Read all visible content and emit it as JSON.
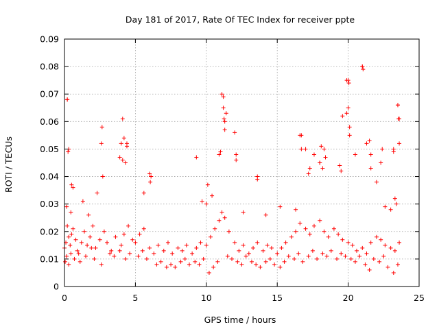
{
  "chart_data": {
    "type": "scatter",
    "title": "Day 181 of 2017, Rate Of TEC Index for receiver ppte",
    "xlabel": "GPS time / hours",
    "ylabel": "ROTI / TECUs",
    "xlim": [
      0,
      25
    ],
    "ylim": [
      0,
      0.09
    ],
    "xticks": [
      0,
      5,
      10,
      15,
      20,
      25
    ],
    "xtick_labels": [
      "0",
      "5",
      "10",
      "15",
      "20",
      "25"
    ],
    "yticks": [
      0,
      0.01,
      0.02,
      0.03,
      0.04,
      0.05,
      0.06,
      0.07,
      0.08,
      0.09
    ],
    "ytick_labels": [
      "0",
      "0.01",
      "0.02",
      "0.03",
      "0.04",
      "0.05",
      "0.06",
      "0.07",
      "0.08",
      "0.09"
    ],
    "grid": true,
    "marker": "+",
    "color": "#ff0000",
    "series": [
      {
        "x": [
          0.0,
          0.1,
          0.2,
          0.3,
          0.4,
          0.5,
          0.6,
          0.8,
          1.0,
          1.2,
          1.4,
          1.6,
          1.8,
          2.0,
          2.2,
          2.5,
          2.8,
          3.0,
          3.3,
          3.6,
          4.0,
          4.2,
          4.5,
          4.8,
          5.0,
          5.3,
          5.6,
          6.0,
          6.3,
          6.6,
          7.0,
          7.3,
          7.6,
          8.0,
          8.3,
          8.6,
          9.0,
          9.3,
          9.6,
          10.0,
          10.3,
          10.6,
          10.9,
          11.1,
          11.3,
          11.6,
          12.0,
          12.3,
          12.6,
          13.0,
          13.3,
          13.6,
          14.0,
          14.3,
          14.6,
          15.0,
          15.3,
          15.6,
          16.0,
          16.3,
          16.6,
          17.0,
          17.3,
          17.6,
          18.0,
          18.3,
          18.6,
          19.0,
          19.3,
          19.6,
          20.0,
          20.3,
          20.6,
          21.0,
          21.3,
          21.6,
          22.0,
          22.3,
          22.6,
          23.0,
          23.3,
          23.6,
          0.2,
          0.5,
          1.3,
          2.3,
          2.7,
          4.1,
          4.4,
          6.1,
          9.3,
          11.1,
          11.2,
          11.3,
          12.1,
          13.6,
          16.7,
          17.0,
          18.0,
          18.3,
          19.6,
          19.9,
          20.0,
          20.1,
          20.5,
          21.0,
          21.3,
          21.6,
          22.0,
          23.2,
          23.5,
          23.6,
          0.05,
          0.15,
          0.3,
          0.45,
          0.7,
          0.9,
          1.1,
          1.5,
          1.9,
          2.1,
          2.6,
          3.2,
          3.5,
          3.9,
          4.3,
          4.6,
          5.2,
          5.5,
          5.8,
          6.5,
          6.8,
          7.2,
          7.5,
          7.8,
          8.2,
          8.5,
          8.8,
          9.2,
          9.5,
          9.8,
          10.2,
          10.5,
          10.8,
          11.5,
          11.8,
          12.2,
          12.5,
          12.8,
          13.2,
          13.5,
          13.8,
          14.2,
          14.5,
          14.8,
          15.2,
          15.5,
          15.8,
          16.2,
          16.5,
          16.8,
          17.2,
          17.5,
          17.8,
          18.2,
          18.5,
          18.8,
          19.2,
          19.5,
          19.8,
          20.2,
          20.5,
          20.8,
          21.2,
          21.5,
          21.8,
          22.2,
          22.5,
          22.8,
          23.2,
          23.5,
          0.2,
          0.25,
          0.3,
          0.6,
          2.6,
          2.65,
          3.9,
          4.0,
          4.1,
          4.2,
          4.3,
          4.4,
          6.0,
          6.05,
          10.1,
          10.4,
          10.9,
          11.0,
          11.2,
          11.25,
          11.3,
          11.4,
          12.0,
          12.1,
          13.6,
          16.3,
          16.6,
          16.7,
          17.2,
          17.3,
          17.6,
          18.0,
          18.1,
          18.2,
          18.4,
          19.4,
          19.5,
          19.9,
          20.0,
          20.05,
          20.1,
          21.0,
          21.05,
          21.5,
          21.6,
          22.3,
          22.4,
          23.2,
          23.3,
          23.5,
          23.55,
          23.6,
          0.15,
          0.45,
          1.7,
          5.6,
          9.7,
          10.0,
          12.6,
          14.2,
          15.2,
          22.6,
          23.0,
          23.4
        ],
        "y": [
          0.014,
          0.016,
          0.022,
          0.018,
          0.015,
          0.019,
          0.021,
          0.017,
          0.012,
          0.016,
          0.02,
          0.015,
          0.018,
          0.022,
          0.014,
          0.017,
          0.02,
          0.016,
          0.013,
          0.018,
          0.015,
          0.019,
          0.022,
          0.017,
          0.016,
          0.019,
          0.021,
          0.014,
          0.012,
          0.015,
          0.013,
          0.016,
          0.012,
          0.014,
          0.013,
          0.015,
          0.012,
          0.014,
          0.016,
          0.015,
          0.018,
          0.021,
          0.024,
          0.027,
          0.025,
          0.02,
          0.016,
          0.013,
          0.015,
          0.012,
          0.014,
          0.016,
          0.013,
          0.015,
          0.014,
          0.012,
          0.014,
          0.016,
          0.018,
          0.02,
          0.023,
          0.021,
          0.019,
          0.022,
          0.024,
          0.02,
          0.018,
          0.021,
          0.019,
          0.017,
          0.016,
          0.015,
          0.013,
          0.014,
          0.012,
          0.016,
          0.018,
          0.017,
          0.015,
          0.014,
          0.013,
          0.016,
          0.068,
          0.037,
          0.031,
          0.034,
          0.04,
          0.046,
          0.052,
          0.04,
          0.047,
          0.07,
          0.065,
          0.06,
          0.048,
          0.04,
          0.055,
          0.05,
          0.045,
          0.05,
          0.062,
          0.075,
          0.065,
          0.058,
          0.048,
          0.08,
          0.052,
          0.043,
          0.038,
          0.05,
          0.066,
          0.061,
          0.009,
          0.011,
          0.008,
          0.012,
          0.01,
          0.013,
          0.009,
          0.011,
          0.014,
          0.01,
          0.008,
          0.012,
          0.011,
          0.013,
          0.01,
          0.012,
          0.011,
          0.013,
          0.01,
          0.008,
          0.009,
          0.007,
          0.008,
          0.007,
          0.009,
          0.01,
          0.008,
          0.009,
          0.008,
          0.01,
          0.005,
          0.007,
          0.009,
          0.011,
          0.01,
          0.009,
          0.008,
          0.011,
          0.009,
          0.008,
          0.007,
          0.009,
          0.01,
          0.008,
          0.007,
          0.009,
          0.011,
          0.01,
          0.012,
          0.009,
          0.011,
          0.013,
          0.01,
          0.012,
          0.011,
          0.013,
          0.01,
          0.012,
          0.011,
          0.01,
          0.009,
          0.011,
          0.008,
          0.006,
          0.01,
          0.009,
          0.011,
          0.007,
          0.005,
          0.008,
          0.068,
          0.049,
          0.05,
          0.036,
          0.052,
          0.058,
          0.047,
          0.052,
          0.061,
          0.054,
          0.045,
          0.051,
          0.041,
          0.038,
          0.037,
          0.033,
          0.048,
          0.049,
          0.069,
          0.061,
          0.057,
          0.063,
          0.056,
          0.046,
          0.039,
          0.028,
          0.055,
          0.05,
          0.041,
          0.043,
          0.048,
          0.045,
          0.051,
          0.043,
          0.047,
          0.044,
          0.042,
          0.063,
          0.075,
          0.074,
          0.055,
          0.08,
          0.079,
          0.053,
          0.048,
          0.045,
          0.05,
          0.049,
          0.032,
          0.066,
          0.061,
          0.052,
          0.029,
          0.027,
          0.026,
          0.034,
          0.031,
          0.03,
          0.027,
          0.026,
          0.029,
          0.029,
          0.028,
          0.03
        ]
      }
    ]
  }
}
